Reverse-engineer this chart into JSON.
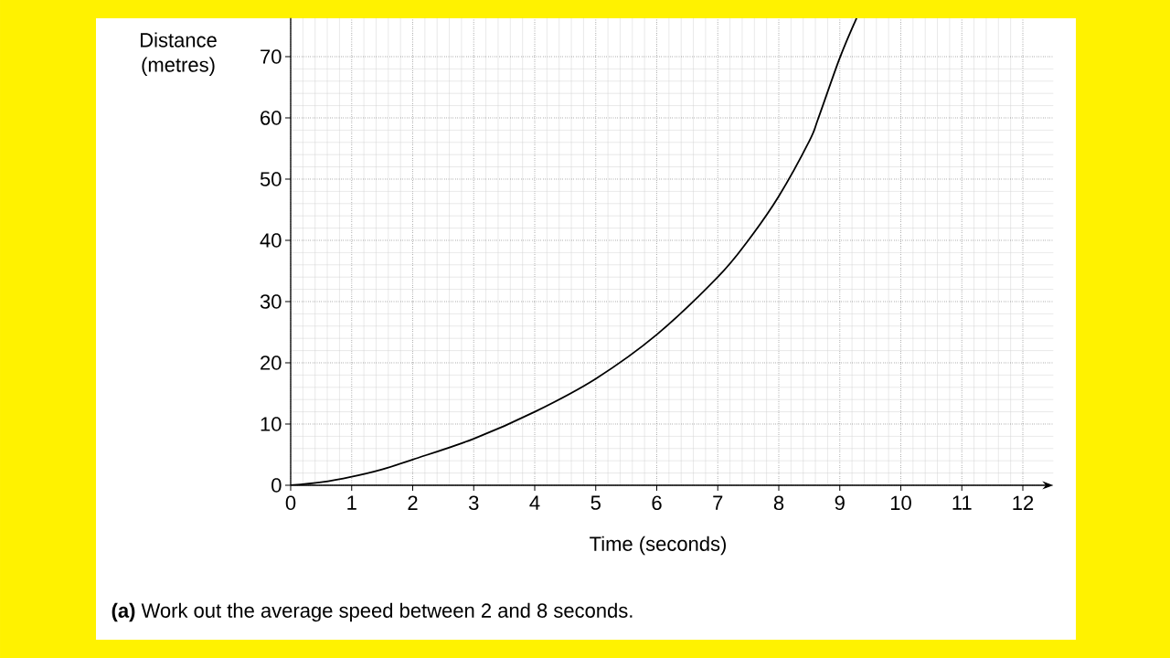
{
  "chart_data": {
    "type": "line",
    "xlabel": "Time (seconds)",
    "ylabel": "Distance (metres)",
    "annotations": [
      "**(a)**   Work out the average speed between 2 and 8 seconds."
    ],
    "x": [
      0,
      0.5,
      1,
      1.5,
      2,
      3,
      4,
      5,
      6,
      7,
      7.5,
      8,
      8.5,
      8.65,
      9,
      9.275
    ],
    "series": [
      {
        "color": "#000000",
        "values": [
          0,
          0.5,
          1.4,
          2.6,
          4.2,
          7.6,
          12,
          17.4,
          24.6,
          34,
          40,
          47.2,
          56.2,
          60,
          69.8,
          76.3
        ]
      }
    ],
    "xlim": [
      0,
      12.5
    ],
    "ylim": [
      0,
      76.3
    ],
    "xticks": [
      0,
      1,
      2,
      3,
      4,
      5,
      6,
      7,
      8,
      9,
      10,
      11,
      12
    ],
    "yticks": [
      0,
      10,
      20,
      30,
      40,
      50,
      60,
      70
    ],
    "grid": true,
    "marker": "none",
    "line_style": "solid"
  }
}
